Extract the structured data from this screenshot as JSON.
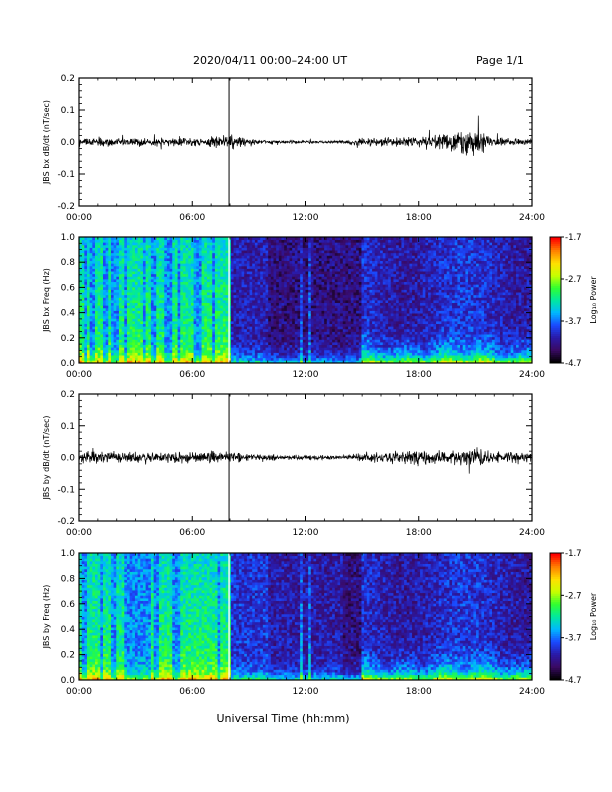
{
  "header": {
    "title": "2020/04/11  00:00–24:00 UT",
    "page": "Page 1/1"
  },
  "xlabel": "Universal Time (hh:mm)",
  "x_ticks": [
    "00:00",
    "06:00",
    "12:00",
    "18:00",
    "24:00"
  ],
  "chart_data": [
    {
      "type": "line",
      "ylabel": "JBS bx dB/dt (nT/sec)",
      "xlim": [
        0,
        24
      ],
      "ylim": [
        -0.2,
        0.2
      ],
      "yticks": [
        "-0.2",
        "-0.1",
        "0.0",
        "0.1",
        "0.2"
      ],
      "spike_hour": 7.95,
      "envelope": {
        "hours": [
          0,
          2,
          4,
          6,
          7.5,
          8,
          9,
          10,
          12,
          14,
          15,
          16,
          18,
          19,
          20,
          20.5,
          21,
          21.5,
          22,
          24
        ],
        "amplitude": [
          0.012,
          0.012,
          0.011,
          0.012,
          0.02,
          0.022,
          0.01,
          0.005,
          0.004,
          0.004,
          0.012,
          0.013,
          0.013,
          0.02,
          0.035,
          0.04,
          0.035,
          0.025,
          0.012,
          0.01
        ]
      }
    },
    {
      "type": "heatmap",
      "ylabel": "JBS bx Freq (Hz)",
      "xlim": [
        0,
        24
      ],
      "ylim": [
        0.0,
        1.0
      ],
      "yticks": [
        "0.0",
        "0.2",
        "0.4",
        "0.6",
        "0.8",
        "1.0"
      ],
      "colorbar": {
        "label": "Log₁₀ Power",
        "ticks": [
          "-1.7",
          "-2.7",
          "-3.7",
          "-4.7"
        ],
        "range": [
          -4.7,
          -1.7
        ]
      },
      "gap_hour": 7.95
    },
    {
      "type": "line",
      "ylabel": "JBS by dB/dt (nT/sec)",
      "xlim": [
        0,
        24
      ],
      "ylim": [
        -0.2,
        0.2
      ],
      "yticks": [
        "-0.2",
        "-0.1",
        "0.0",
        "0.1",
        "0.2"
      ],
      "spike_hour": 7.95,
      "envelope": {
        "hours": [
          0,
          2,
          4,
          6,
          7.5,
          8,
          9,
          10,
          12,
          14,
          15,
          16,
          18,
          19,
          20,
          21,
          22,
          24
        ],
        "amplitude": [
          0.015,
          0.016,
          0.016,
          0.015,
          0.02,
          0.022,
          0.012,
          0.008,
          0.006,
          0.007,
          0.012,
          0.018,
          0.02,
          0.018,
          0.022,
          0.028,
          0.02,
          0.015
        ]
      }
    },
    {
      "type": "heatmap",
      "ylabel": "JBS by Freq (Hz)",
      "xlim": [
        0,
        24
      ],
      "ylim": [
        0.0,
        1.0
      ],
      "yticks": [
        "0.0",
        "0.2",
        "0.4",
        "0.6",
        "0.8",
        "1.0"
      ],
      "colorbar": {
        "label": "Log₁₀ Power",
        "ticks": [
          "-1.7",
          "-2.7",
          "-3.7",
          "-4.7"
        ],
        "range": [
          -4.7,
          -1.7
        ]
      },
      "gap_hour": 7.95
    }
  ],
  "colors": {
    "trace": "#000000",
    "colormap": [
      "#000000",
      "#3a0a64",
      "#2a1aa8",
      "#1a4aff",
      "#00b8ff",
      "#00e8a0",
      "#30ff30",
      "#c8ff00",
      "#ffe000",
      "#ff8000",
      "#ff0000"
    ]
  }
}
